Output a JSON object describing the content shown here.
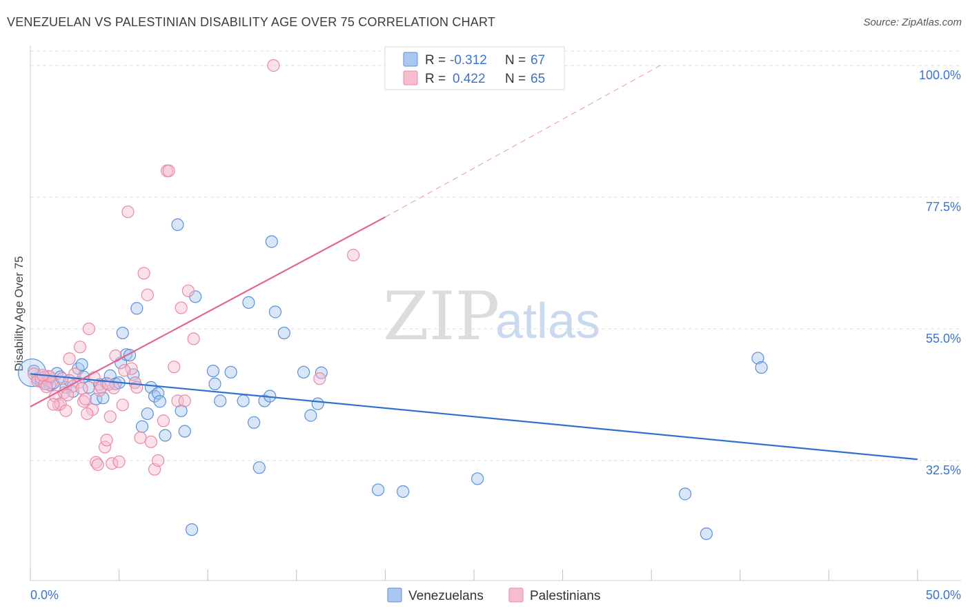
{
  "title": "VENEZUELAN VS PALESTINIAN DISABILITY AGE OVER 75 CORRELATION CHART",
  "source": "Source: ZipAtlas.com",
  "watermark": {
    "zip": "ZIP",
    "atlas": "atlas"
  },
  "colors": {
    "venezuelans_fill": "#a9c7f0",
    "venezuelans_stroke": "#5b8fd8",
    "venezuelans_line": "#2f6fd1",
    "palestinians_fill": "#f6bcd0",
    "palestinians_stroke": "#e889a8",
    "palestinians_line": "#e0668f",
    "tick_text": "#3b73c9",
    "grid": "#dddddd"
  },
  "legend": {
    "r_label": "R =",
    "n_label": "N =",
    "rows": [
      {
        "series": "Venezuelans",
        "r": "-0.312",
        "n": "67"
      },
      {
        "series": "Palestinians",
        "r": "0.422",
        "n": "65"
      }
    ]
  },
  "chart_data": {
    "type": "scatter",
    "title": "VENEZUELAN VS PALESTINIAN DISABILITY AGE OVER 75 CORRELATION CHART",
    "xlabel": "",
    "ylabel": "Disability Age Over 75",
    "xlim": [
      0,
      50
    ],
    "ylim": [
      12,
      102
    ],
    "x_tick_labels": [
      "0.0%",
      "50.0%"
    ],
    "y_ticks": [
      32.5,
      55.0,
      77.5,
      100.0
    ],
    "y_tick_labels": [
      "32.5%",
      "55.0%",
      "77.5%",
      "100.0%"
    ],
    "legend_position": "bottom-center",
    "series": [
      {
        "name": "Venezuelans",
        "trend": {
          "x": [
            0,
            50
          ],
          "y": [
            47.3,
            32.7
          ]
        },
        "points": [
          [
            0.2,
            47.8
          ],
          [
            0.4,
            46.5
          ],
          [
            0.6,
            46.0
          ],
          [
            0.8,
            46.8
          ],
          [
            0.9,
            45.6
          ],
          [
            1.0,
            46.2
          ],
          [
            1.1,
            45.4
          ],
          [
            1.3,
            45.7
          ],
          [
            1.5,
            47.4
          ],
          [
            1.7,
            46.8
          ],
          [
            2.0,
            45.0
          ],
          [
            2.2,
            46.2
          ],
          [
            2.4,
            44.3
          ],
          [
            2.7,
            48.2
          ],
          [
            2.9,
            48.9
          ],
          [
            3.0,
            46.8
          ],
          [
            3.3,
            45.0
          ],
          [
            3.7,
            43.0
          ],
          [
            3.9,
            45.5
          ],
          [
            4.1,
            43.2
          ],
          [
            4.3,
            45.7
          ],
          [
            4.5,
            47.0
          ],
          [
            4.8,
            45.6
          ],
          [
            5.0,
            45.8
          ],
          [
            5.1,
            49.2
          ],
          [
            5.2,
            54.3
          ],
          [
            5.4,
            50.6
          ],
          [
            5.6,
            50.5
          ],
          [
            5.8,
            47.2
          ],
          [
            5.9,
            45.8
          ],
          [
            6.0,
            58.5
          ],
          [
            6.3,
            38.3
          ],
          [
            6.6,
            40.5
          ],
          [
            6.8,
            45.0
          ],
          [
            7.0,
            43.5
          ],
          [
            7.2,
            44.0
          ],
          [
            7.3,
            42.6
          ],
          [
            7.6,
            36.8
          ],
          [
            8.3,
            72.8
          ],
          [
            8.5,
            41.0
          ],
          [
            8.7,
            37.5
          ],
          [
            9.1,
            20.7
          ],
          [
            9.3,
            60.5
          ],
          [
            10.3,
            47.8
          ],
          [
            10.4,
            45.6
          ],
          [
            10.7,
            42.7
          ],
          [
            11.3,
            47.6
          ],
          [
            12.0,
            42.7
          ],
          [
            12.3,
            59.5
          ],
          [
            12.6,
            39.0
          ],
          [
            12.9,
            31.3
          ],
          [
            13.2,
            42.7
          ],
          [
            13.5,
            43.5
          ],
          [
            13.6,
            69.9
          ],
          [
            13.8,
            57.9
          ],
          [
            14.3,
            54.3
          ],
          [
            15.4,
            47.6
          ],
          [
            15.8,
            40.2
          ],
          [
            16.2,
            42.2
          ],
          [
            16.4,
            47.5
          ],
          [
            19.6,
            27.5
          ],
          [
            21.0,
            27.2
          ],
          [
            25.2,
            29.4
          ],
          [
            41.0,
            50.0
          ],
          [
            41.2,
            48.4
          ],
          [
            36.9,
            26.8
          ],
          [
            38.1,
            20.0
          ]
        ]
      },
      {
        "name": "Palestinians",
        "trend_solid": {
          "x": [
            0,
            20
          ],
          "y": [
            41.7,
            74.1
          ]
        },
        "trend_dashed": {
          "x": [
            20,
            35.5
          ],
          "y": [
            74.1,
            100.0
          ]
        },
        "points": [
          [
            0.2,
            47.3
          ],
          [
            0.4,
            46.1
          ],
          [
            0.6,
            46.6
          ],
          [
            0.8,
            45.6
          ],
          [
            1.0,
            46.9
          ],
          [
            1.2,
            45.8
          ],
          [
            1.4,
            43.5
          ],
          [
            1.6,
            42.0
          ],
          [
            1.7,
            42.2
          ],
          [
            1.9,
            44.1
          ],
          [
            2.0,
            41.0
          ],
          [
            2.2,
            49.9
          ],
          [
            2.5,
            47.3
          ],
          [
            2.7,
            45.8
          ],
          [
            2.8,
            51.9
          ],
          [
            3.0,
            42.6
          ],
          [
            3.1,
            43.0
          ],
          [
            3.3,
            55.0
          ],
          [
            3.5,
            41.2
          ],
          [
            3.7,
            32.2
          ],
          [
            3.9,
            44.5
          ],
          [
            4.0,
            45.0
          ],
          [
            4.2,
            34.8
          ],
          [
            4.3,
            36.0
          ],
          [
            4.5,
            40.0
          ],
          [
            4.6,
            32.0
          ],
          [
            4.8,
            50.4
          ],
          [
            5.0,
            32.3
          ],
          [
            5.2,
            42.0
          ],
          [
            5.5,
            75.0
          ],
          [
            5.7,
            48.2
          ],
          [
            5.9,
            45.8
          ],
          [
            6.0,
            45.0
          ],
          [
            6.2,
            36.4
          ],
          [
            6.4,
            64.5
          ],
          [
            6.6,
            60.8
          ],
          [
            6.8,
            35.7
          ],
          [
            7.0,
            31.0
          ],
          [
            7.2,
            32.5
          ],
          [
            7.5,
            39.3
          ],
          [
            7.7,
            82.0
          ],
          [
            7.8,
            82.0
          ],
          [
            8.1,
            48.5
          ],
          [
            8.3,
            42.7
          ],
          [
            8.5,
            58.6
          ],
          [
            8.7,
            42.7
          ],
          [
            8.9,
            61.5
          ],
          [
            9.2,
            53.3
          ],
          [
            13.7,
            100.0
          ],
          [
            16.3,
            46.5
          ],
          [
            18.2,
            67.6
          ],
          [
            1.1,
            46.8
          ],
          [
            2.4,
            45.2
          ],
          [
            3.6,
            46.7
          ],
          [
            4.7,
            44.9
          ],
          [
            5.3,
            47.9
          ],
          [
            0.9,
            45.1
          ],
          [
            1.3,
            42.1
          ],
          [
            2.1,
            43.7
          ],
          [
            3.2,
            40.5
          ],
          [
            4.4,
            45.5
          ],
          [
            0.7,
            47.1
          ],
          [
            1.8,
            46.5
          ],
          [
            2.9,
            44.8
          ],
          [
            3.8,
            31.8
          ]
        ]
      }
    ]
  },
  "bottom_legend": [
    {
      "label": "Venezuelans"
    },
    {
      "label": "Palestinians"
    }
  ]
}
